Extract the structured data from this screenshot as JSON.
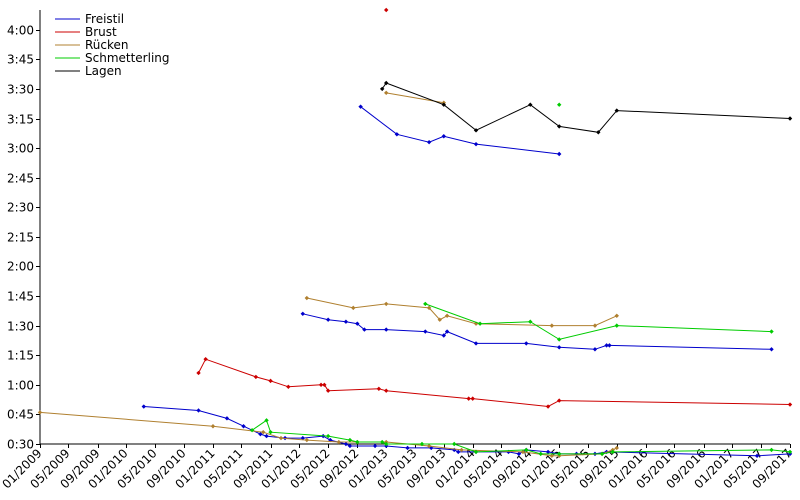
{
  "chart_data": {
    "type": "line",
    "title": "",
    "xlabel": "",
    "ylabel": "",
    "ylim": [
      "0:30",
      "4:10"
    ],
    "xlim": [
      "2009-01-01",
      "2017-09-01"
    ],
    "yticks": [
      "0:30",
      "0:45",
      "1:00",
      "1:15",
      "1:30",
      "1:45",
      "2:00",
      "2:15",
      "2:30",
      "2:45",
      "3:00",
      "3:15",
      "3:30",
      "3:45",
      "4:00"
    ],
    "xticks": [
      "01/2009",
      "05/2009",
      "09/2009",
      "01/2010",
      "05/2010",
      "09/2010",
      "01/2011",
      "05/2011",
      "09/2011",
      "01/2012",
      "05/2012",
      "09/2012",
      "01/2013",
      "05/2013",
      "09/2013",
      "01/2014",
      "05/2014",
      "09/2014",
      "01/2015",
      "05/2015",
      "09/2015",
      "01/2016",
      "05/2016",
      "09/2016",
      "01/2017",
      "05/2017",
      "09/2017"
    ],
    "grid": false,
    "legend_position": "top-left",
    "series": [
      {
        "name": "Freistil",
        "color": "#0000cc",
        "segments": [
          [
            [
              "2010-03-15",
              "0:49"
            ],
            [
              "2010-11-01",
              "0:47"
            ],
            [
              "2011-03-01",
              "0:43"
            ],
            [
              "2011-05-10",
              "0:39"
            ],
            [
              "2011-07-20",
              "0:35"
            ],
            [
              "2011-08-15",
              "0:34"
            ],
            [
              "2011-11-01",
              "0:33"
            ],
            [
              "2012-01-15",
              "0:33"
            ],
            [
              "2012-04-10",
              "0:34"
            ],
            [
              "2012-05-10",
              "0:32"
            ],
            [
              "2012-07-15",
              "0:30"
            ],
            [
              "2012-08-01",
              "0:29"
            ],
            [
              "2012-11-15",
              "0:29"
            ],
            [
              "2013-01-01",
              "0:29"
            ],
            [
              "2013-04-01",
              "0:28"
            ],
            [
              "2013-07-10",
              "0:28"
            ],
            [
              "2013-10-15",
              "0:27"
            ],
            [
              "2013-11-01",
              "0:26"
            ],
            [
              "2014-01-15",
              "0:26"
            ],
            [
              "2014-06-01",
              "0:26"
            ],
            [
              "2014-07-15",
              "0:25"
            ],
            [
              "2014-08-15",
              "0:27"
            ],
            [
              "2014-11-15",
              "0:26"
            ],
            [
              "2015-01-01",
              "0:25"
            ],
            [
              "2015-03-15",
              "0:25"
            ],
            [
              "2015-06-01",
              "0:25"
            ],
            [
              "2015-07-20",
              "0:26"
            ],
            [
              "2017-04-15",
              "0:24"
            ],
            [
              "2017-09-01",
              "0:25"
            ]
          ],
          [
            [
              "2012-01-15",
              "1:36"
            ],
            [
              "2012-05-01",
              "1:33"
            ],
            [
              "2012-07-15",
              "1:32"
            ],
            [
              "2012-09-01",
              "1:31"
            ],
            [
              "2012-10-01",
              "1:28"
            ],
            [
              "2013-01-01",
              "1:28"
            ],
            [
              "2013-06-15",
              "1:27"
            ],
            [
              "2013-09-01",
              "1:25"
            ],
            [
              "2013-09-15",
              "1:27"
            ],
            [
              "2014-01-15",
              "1:21"
            ],
            [
              "2014-08-15",
              "1:21"
            ],
            [
              "2015-01-01",
              "1:19"
            ],
            [
              "2015-06-01",
              "1:18"
            ],
            [
              "2015-07-20",
              "1:20"
            ],
            [
              "2015-08-01",
              "1:20"
            ],
            [
              "2017-06-15",
              "1:18"
            ]
          ],
          [
            [
              "2012-09-15",
              "3:21"
            ],
            [
              "2013-02-15",
              "3:07"
            ],
            [
              "2013-07-01",
              "3:03"
            ],
            [
              "2013-09-01",
              "3:06"
            ],
            [
              "2014-01-15",
              "3:02"
            ],
            [
              "2015-01-01",
              "2:57"
            ]
          ]
        ]
      },
      {
        "name": "Brust",
        "color": "#cc0000",
        "segments": [
          [
            [
              "2010-11-01",
              "1:06"
            ],
            [
              "2010-12-01",
              "1:13"
            ],
            [
              "2011-07-01",
              "1:04"
            ],
            [
              "2011-09-01",
              "1:02"
            ],
            [
              "2011-11-15",
              "0:59"
            ],
            [
              "2012-04-01",
              "1:00"
            ],
            [
              "2012-04-15",
              "1:00"
            ],
            [
              "2012-05-01",
              "0:57"
            ],
            [
              "2012-12-01",
              "0:58"
            ],
            [
              "2013-01-01",
              "0:57"
            ],
            [
              "2013-12-15",
              "0:53"
            ],
            [
              "2014-01-01",
              "0:53"
            ],
            [
              "2014-11-15",
              "0:49"
            ],
            [
              "2015-01-01",
              "0:52"
            ],
            [
              "2017-09-01",
              "0:50"
            ]
          ],
          [
            [
              "2013-01-01",
              "4:10"
            ]
          ]
        ]
      },
      {
        "name": "Rücken",
        "color": "#b08030",
        "segments": [
          [
            [
              "2009-01-01",
              "0:46"
            ],
            [
              "2011-01-01",
              "0:39"
            ],
            [
              "2011-08-01",
              "0:36"
            ],
            [
              "2011-10-15",
              "0:33"
            ],
            [
              "2012-02-01",
              "0:32"
            ],
            [
              "2012-06-15",
              "0:31"
            ],
            [
              "2012-09-01",
              "0:31"
            ],
            [
              "2013-01-01",
              "0:31"
            ],
            [
              "2013-07-01",
              "0:29"
            ],
            [
              "2013-11-15",
              "0:27"
            ],
            [
              "2014-08-01",
              "0:26"
            ],
            [
              "2014-12-01",
              "0:24"
            ],
            [
              "2015-01-01",
              "0:24"
            ],
            [
              "2015-07-01",
              "0:25"
            ],
            [
              "2015-08-15",
              "0:27"
            ],
            [
              "2015-09-01",
              "0:28"
            ]
          ],
          [
            [
              "2012-02-01",
              "1:44"
            ],
            [
              "2012-08-15",
              "1:39"
            ],
            [
              "2013-01-01",
              "1:41"
            ],
            [
              "2013-07-01",
              "1:39"
            ],
            [
              "2013-08-15",
              "1:33"
            ],
            [
              "2013-09-15",
              "1:35"
            ],
            [
              "2014-01-15",
              "1:31"
            ],
            [
              "2014-12-01",
              "1:30"
            ],
            [
              "2015-06-01",
              "1:30"
            ],
            [
              "2015-09-01",
              "1:35"
            ]
          ],
          [
            [
              "2013-01-01",
              "3:28"
            ],
            [
              "2013-09-01",
              "3:23"
            ]
          ]
        ]
      },
      {
        "name": "Schmetterling",
        "color": "#00cc00",
        "segments": [
          [
            [
              "2011-06-15",
              "0:37"
            ],
            [
              "2011-08-15",
              "0:42"
            ],
            [
              "2011-09-01",
              "0:36"
            ],
            [
              "2012-05-01",
              "0:34"
            ],
            [
              "2012-08-01",
              "0:32"
            ],
            [
              "2012-09-01",
              "0:31"
            ],
            [
              "2012-12-15",
              "0:31"
            ],
            [
              "2013-01-01",
              "0:30"
            ],
            [
              "2013-06-01",
              "0:30"
            ],
            [
              "2013-10-15",
              "0:30"
            ],
            [
              "2014-01-15",
              "0:26"
            ],
            [
              "2014-08-15",
              "0:27"
            ],
            [
              "2014-10-15",
              "0:25"
            ],
            [
              "2015-01-01",
              "0:25"
            ],
            [
              "2015-07-01",
              "0:25"
            ],
            [
              "2015-08-15",
              "0:26"
            ],
            [
              "2017-06-15",
              "0:27"
            ],
            [
              "2017-09-01",
              "0:26"
            ]
          ],
          [
            [
              "2013-06-15",
              "1:41"
            ],
            [
              "2014-02-01",
              "1:31"
            ],
            [
              "2014-09-01",
              "1:32"
            ],
            [
              "2015-01-01",
              "1:23"
            ],
            [
              "2015-09-01",
              "1:30"
            ],
            [
              "2017-06-15",
              "1:27"
            ]
          ],
          [
            [
              "2015-01-01",
              "3:22"
            ]
          ]
        ]
      },
      {
        "name": "Lagen",
        "color": "#000000",
        "segments": [
          [
            [
              "2012-12-15",
              "3:30"
            ],
            [
              "2013-01-01",
              "3:33"
            ],
            [
              "2013-09-01",
              "3:22"
            ],
            [
              "2014-01-15",
              "3:09"
            ],
            [
              "2014-09-01",
              "3:22"
            ],
            [
              "2015-01-01",
              "3:11"
            ],
            [
              "2015-06-15",
              "3:08"
            ],
            [
              "2015-09-01",
              "3:19"
            ],
            [
              "2017-09-01",
              "3:15"
            ]
          ]
        ]
      }
    ]
  }
}
